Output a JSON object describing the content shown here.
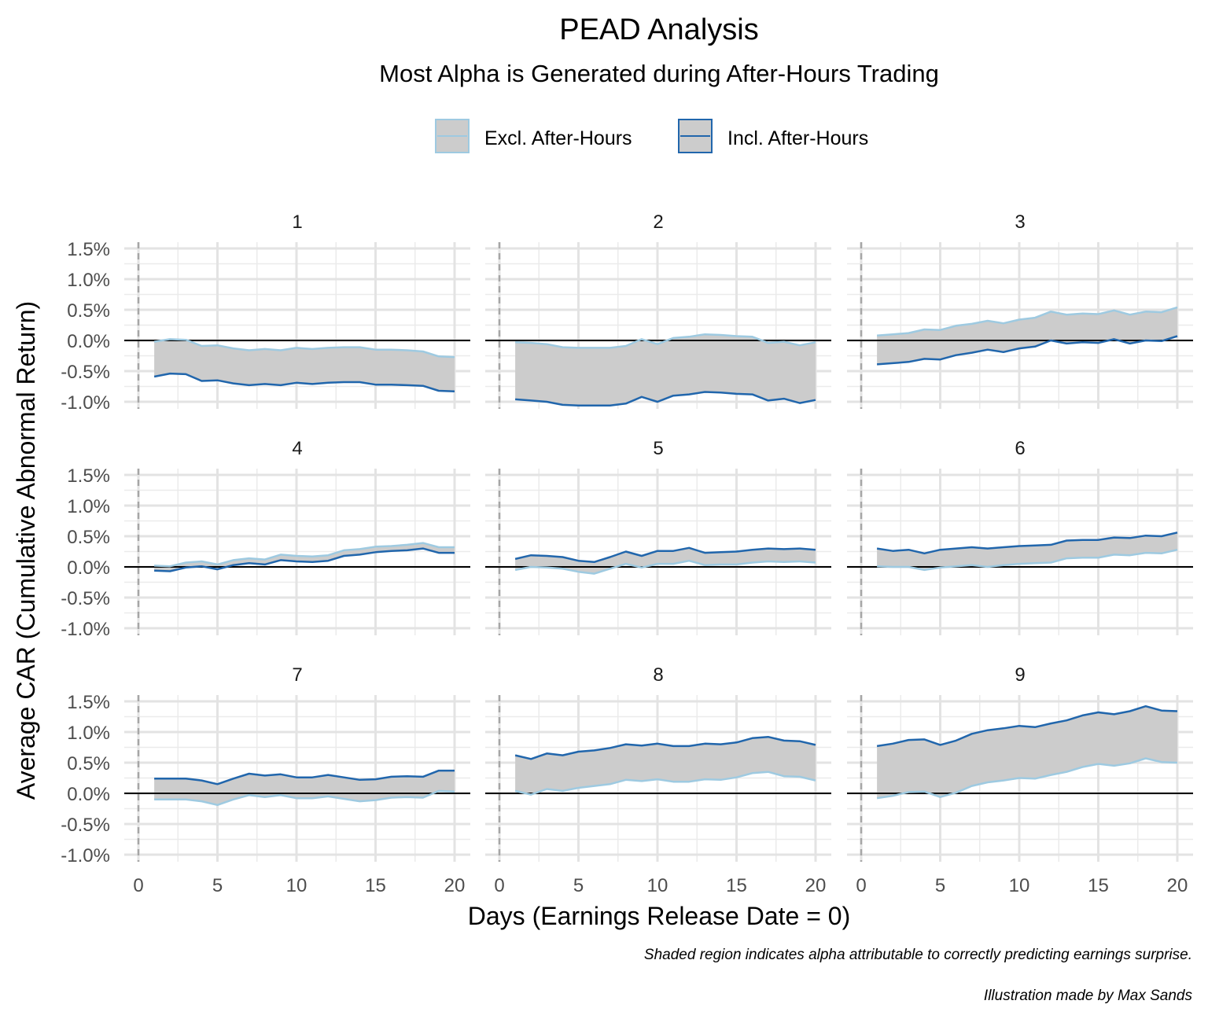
{
  "title": "PEAD Analysis",
  "subtitle": "Most Alpha is Generated during After-Hours Trading",
  "legend": [
    {
      "label": "Excl. After-Hours",
      "color": "#9ecae1"
    },
    {
      "label": "Incl. After-Hours",
      "color": "#2166ac"
    }
  ],
  "captions": [
    "Shaded region indicates alpha attributable to correctly predicting earnings surprise.",
    "Illustration made by Max Sands"
  ],
  "chart_data": {
    "type": "line",
    "facet_wrap": "3x3",
    "shaded_between_series": true,
    "shade_color": "#cccccc",
    "xlabel": "Days (Earnings Release Date = 0)",
    "ylabel": "Average CAR (Cumulative Abnormal Return)",
    "xlim": [
      0,
      20
    ],
    "ylim": [
      -1.0,
      1.5
    ],
    "x_ticks": [
      0,
      5,
      10,
      15,
      20
    ],
    "x_tick_labels": [
      "0",
      "5",
      "10",
      "15",
      "20"
    ],
    "y_ticks": [
      -1.0,
      -0.5,
      0.0,
      0.5,
      1.0,
      1.5
    ],
    "y_tick_labels": [
      "-1.0%",
      "-0.5%",
      "0.0%",
      "0.5%",
      "1.0%",
      "1.5%"
    ],
    "vline_x": 0,
    "hline_y": 0,
    "x": [
      1,
      2,
      3,
      4,
      5,
      6,
      7,
      8,
      9,
      10,
      11,
      12,
      13,
      14,
      15,
      16,
      17,
      18,
      19,
      20
    ],
    "panels": [
      {
        "label": "1",
        "excl": [
          -0.02,
          0.02,
          0.01,
          -0.09,
          -0.08,
          -0.13,
          -0.16,
          -0.14,
          -0.16,
          -0.12,
          -0.14,
          -0.12,
          -0.11,
          -0.11,
          -0.15,
          -0.15,
          -0.16,
          -0.18,
          -0.26,
          -0.27
        ],
        "incl": [
          -0.59,
          -0.54,
          -0.55,
          -0.66,
          -0.65,
          -0.7,
          -0.73,
          -0.71,
          -0.73,
          -0.69,
          -0.71,
          -0.69,
          -0.68,
          -0.68,
          -0.72,
          -0.72,
          -0.73,
          -0.74,
          -0.82,
          -0.83
        ]
      },
      {
        "label": "2",
        "excl": [
          -0.03,
          -0.04,
          -0.06,
          -0.11,
          -0.12,
          -0.12,
          -0.12,
          -0.09,
          0.02,
          -0.06,
          0.04,
          0.06,
          0.1,
          0.09,
          0.07,
          0.06,
          -0.04,
          -0.02,
          -0.08,
          -0.03
        ],
        "incl": [
          -0.96,
          -0.98,
          -1.0,
          -1.05,
          -1.06,
          -1.06,
          -1.06,
          -1.03,
          -0.92,
          -1.0,
          -0.9,
          -0.88,
          -0.84,
          -0.85,
          -0.87,
          -0.88,
          -0.98,
          -0.95,
          -1.02,
          -0.97
        ]
      },
      {
        "label": "3",
        "excl": [
          0.08,
          0.1,
          0.12,
          0.18,
          0.17,
          0.24,
          0.27,
          0.32,
          0.28,
          0.34,
          0.37,
          0.47,
          0.42,
          0.44,
          0.43,
          0.49,
          0.42,
          0.47,
          0.46,
          0.54
        ],
        "incl": [
          -0.39,
          -0.37,
          -0.35,
          -0.3,
          -0.31,
          -0.24,
          -0.2,
          -0.15,
          -0.19,
          -0.13,
          -0.1,
          0.0,
          -0.05,
          -0.03,
          -0.04,
          0.02,
          -0.05,
          0.0,
          -0.01,
          0.07
        ]
      },
      {
        "label": "4",
        "excl": [
          0.02,
          0.01,
          0.07,
          0.09,
          0.04,
          0.11,
          0.14,
          0.12,
          0.2,
          0.18,
          0.17,
          0.19,
          0.27,
          0.29,
          0.33,
          0.34,
          0.36,
          0.39,
          0.32,
          0.32
        ],
        "incl": [
          -0.06,
          -0.07,
          -0.01,
          0.01,
          -0.04,
          0.03,
          0.06,
          0.04,
          0.11,
          0.09,
          0.08,
          0.1,
          0.18,
          0.2,
          0.24,
          0.26,
          0.27,
          0.3,
          0.23,
          0.23
        ]
      },
      {
        "label": "5",
        "excl": [
          -0.05,
          0.0,
          -0.01,
          -0.03,
          -0.08,
          -0.11,
          -0.03,
          0.05,
          -0.01,
          0.05,
          0.05,
          0.1,
          0.03,
          0.04,
          0.04,
          0.07,
          0.09,
          0.08,
          0.09,
          0.07
        ],
        "incl": [
          0.13,
          0.19,
          0.18,
          0.16,
          0.1,
          0.08,
          0.16,
          0.25,
          0.18,
          0.26,
          0.26,
          0.31,
          0.23,
          0.24,
          0.25,
          0.28,
          0.3,
          0.29,
          0.3,
          0.28
        ]
      },
      {
        "label": "6",
        "excl": [
          0.01,
          0.0,
          0.0,
          -0.05,
          -0.01,
          0.01,
          0.03,
          0.0,
          0.03,
          0.05,
          0.06,
          0.07,
          0.14,
          0.15,
          0.15,
          0.2,
          0.19,
          0.23,
          0.22,
          0.28
        ],
        "incl": [
          0.3,
          0.26,
          0.28,
          0.22,
          0.28,
          0.3,
          0.32,
          0.3,
          0.32,
          0.34,
          0.35,
          0.36,
          0.43,
          0.44,
          0.44,
          0.48,
          0.47,
          0.51,
          0.5,
          0.56
        ]
      },
      {
        "label": "7",
        "excl": [
          -0.1,
          -0.1,
          -0.1,
          -0.13,
          -0.19,
          -0.1,
          -0.03,
          -0.06,
          -0.03,
          -0.08,
          -0.08,
          -0.05,
          -0.09,
          -0.13,
          -0.11,
          -0.07,
          -0.06,
          -0.07,
          0.04,
          0.03
        ],
        "incl": [
          0.24,
          0.24,
          0.24,
          0.21,
          0.15,
          0.24,
          0.32,
          0.29,
          0.31,
          0.26,
          0.26,
          0.3,
          0.26,
          0.22,
          0.23,
          0.27,
          0.28,
          0.27,
          0.37,
          0.37
        ]
      },
      {
        "label": "8",
        "excl": [
          0.04,
          -0.02,
          0.07,
          0.04,
          0.09,
          0.12,
          0.15,
          0.22,
          0.2,
          0.23,
          0.19,
          0.19,
          0.23,
          0.22,
          0.26,
          0.33,
          0.35,
          0.28,
          0.27,
          0.21
        ],
        "incl": [
          0.62,
          0.56,
          0.65,
          0.62,
          0.68,
          0.7,
          0.74,
          0.8,
          0.78,
          0.81,
          0.77,
          0.77,
          0.81,
          0.8,
          0.83,
          0.9,
          0.92,
          0.86,
          0.85,
          0.79
        ]
      },
      {
        "label": "9",
        "excl": [
          -0.08,
          -0.04,
          0.02,
          0.03,
          -0.06,
          0.01,
          0.12,
          0.18,
          0.21,
          0.25,
          0.24,
          0.3,
          0.35,
          0.43,
          0.48,
          0.45,
          0.49,
          0.57,
          0.51,
          0.5
        ],
        "incl": [
          0.77,
          0.81,
          0.87,
          0.88,
          0.79,
          0.86,
          0.97,
          1.03,
          1.06,
          1.1,
          1.08,
          1.14,
          1.19,
          1.27,
          1.32,
          1.29,
          1.34,
          1.42,
          1.35,
          1.34
        ]
      }
    ]
  }
}
